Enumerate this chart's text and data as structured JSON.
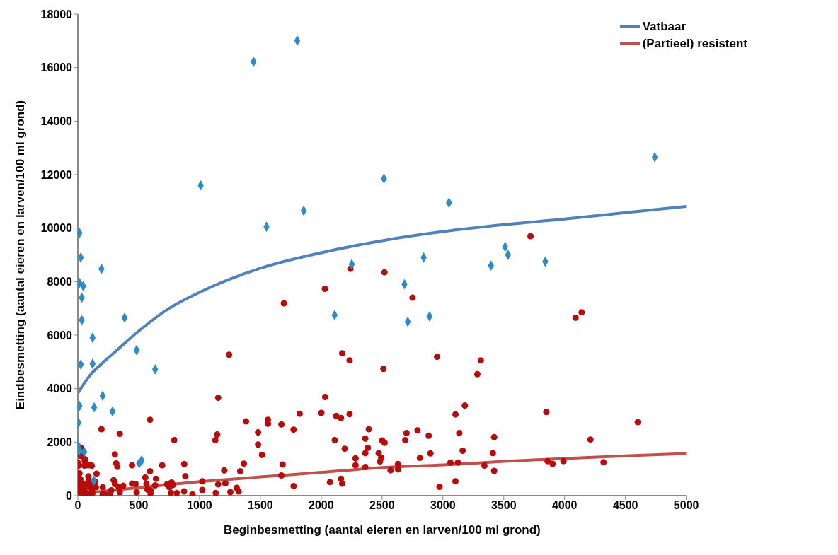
{
  "chart_data": {
    "type": "scatter",
    "xlabel": "Beginbesmetting (aantal eieren en larven/100 ml grond)",
    "ylabel": "Eindbesmetting (aantal eieren en larven/100 ml grond)",
    "xlim": [
      0,
      5000
    ],
    "xticks": [
      0,
      500,
      1000,
      1500,
      2000,
      2500,
      3000,
      3500,
      4000,
      4500,
      5000
    ],
    "ylim": [
      0,
      18000
    ],
    "yticks": [
      0,
      2000,
      4000,
      6000,
      8000,
      10000,
      12000,
      14000,
      16000,
      18000
    ],
    "grid": false,
    "legend": "top right",
    "series": [
      {
        "type": "scatter",
        "marker": "diamond",
        "color": "#2e8bc9",
        "x": [
          1444,
          1803,
          1010,
          1550,
          1856,
          2515,
          3050,
          4741,
          2251,
          2842,
          3511,
          3535,
          3395,
          3841,
          2684,
          2110,
          2711,
          2890,
          194,
          13,
          44,
          32,
          32,
          384,
          121,
          483,
          24,
          121,
          635,
          204,
          13,
          134,
          285,
          5,
          1,
          13,
          53,
          504,
          524,
          131,
          13,
          24
        ],
        "values": [
          16224,
          17011,
          11600,
          10050,
          10650,
          11850,
          10950,
          12650,
          8650,
          8900,
          9300,
          9000,
          8600,
          8750,
          7900,
          6750,
          6500,
          6700,
          8475,
          7950,
          7830,
          7400,
          6560,
          6650,
          5900,
          5440,
          4900,
          4930,
          4720,
          3730,
          3350,
          3300,
          3150,
          2730,
          1890,
          1690,
          1630,
          1210,
          1310,
          560,
          9820,
          8900
        ]
      },
      {
        "type": "scatter",
        "marker": "circle",
        "color": "#b80c0c",
        "x": [
          3720,
          2240,
          2520,
          2030,
          2750,
          4090,
          4140,
          1693,
          1243,
          1153,
          593,
          194,
          344,
          1382,
          1562,
          1562,
          1673,
          1823,
          1773,
          1481,
          1481,
          1513,
          1130,
          1145,
          792,
          24,
          57,
          24,
          304,
          315,
          325,
          445,
          693,
          874,
          1364,
          1683,
          1673,
          1773,
          1334,
          1203,
          883,
          593,
          554,
          642,
          1023,
          1153,
          1212,
          1305,
          1321,
          1253,
          1133,
          1023,
          942,
          873,
          813,
          765,
          770,
          782,
          753,
          732,
          635,
          597,
          597,
          564,
          572,
          483,
          445,
          474,
          373,
          335,
          344,
          304,
          294,
          275,
          263,
          223,
          204,
          204,
          154,
          142,
          131,
          148,
          115,
          94,
          73,
          53,
          57,
          5,
          5,
          86,
          86,
          69,
          102,
          115,
          121,
          98,
          69,
          45,
          29,
          13,
          21,
          1,
          29,
          21,
          5,
          13,
          45,
          2172,
          2233,
          2511,
          2952,
          3311,
          3283,
          2032,
          2001,
          2123,
          2162,
          2233,
          2391,
          2362,
          2383,
          2362,
          2362,
          2111,
          2193,
          2282,
          2282,
          2072,
          2162,
          2172,
          2472,
          2483,
          2493,
          2501,
          2521,
          2570,
          2631,
          2631,
          2690,
          2701,
          2791,
          2811,
          2883,
          2897,
          2972,
          3062,
          3103,
          3103,
          3123,
          3134,
          3162,
          3180,
          3341,
          3410,
          3421,
          3421,
          3850,
          3860,
          3901,
          3991,
          4212,
          4320,
          4601
        ],
        "values": [
          9700,
          8480,
          8350,
          7730,
          7400,
          6650,
          6850,
          7190,
          5266,
          3656,
          2834,
          2484,
          2309,
          2773,
          2834,
          2685,
          2660,
          3062,
          2467,
          2362,
          1907,
          1522,
          2073,
          2283,
          2073,
          1793,
          1364,
          1487,
          1539,
          1207,
          1076,
          1137,
          1137,
          1181,
          1198,
          1163,
          752,
          359,
          910,
          945,
          726,
          910,
          674,
          630,
          534,
          420,
          455,
          289,
          157,
          131,
          96,
          210,
          44,
          157,
          96,
          96,
          490,
          402,
          315,
          420,
          385,
          201,
          87,
          437,
          227,
          122,
          446,
          437,
          367,
          332,
          131,
          437,
          577,
          201,
          44,
          44,
          44,
          315,
          822,
          525,
          437,
          315,
          1120,
          1137,
          1137,
          1120,
          1295,
          1207,
          1120,
          717,
          525,
          332,
          315,
          175,
          96,
          44,
          96,
          157,
          44,
          157,
          332,
          463,
          463,
          612,
          726,
          831,
          420,
          5322,
          5057,
          4737,
          5190,
          5057,
          4539,
          3687,
          3091,
          2981,
          2902,
          3046,
          2482,
          2130,
          1787,
          1588,
          1068,
          2073,
          1753,
          1391,
          1136,
          506,
          627,
          451,
          1588,
          1278,
          1422,
          2062,
          1976,
          947,
          1181,
          981,
          2073,
          2340,
          2440,
          1412,
          2241,
          1577,
          328,
          1233,
          3036,
          538,
          1233,
          2340,
          1677,
          3367,
          1123,
          1588,
          2186,
          926,
          3125,
          1291,
          1191,
          1291,
          2097,
          1246,
          2747
        ]
      },
      {
        "type": "line",
        "name": "Vatbaar",
        "color": "#4f81bd",
        "x": [
          0,
          100,
          200,
          300,
          500,
          750,
          1000,
          1500,
          2000,
          2500,
          3000,
          3500,
          4000,
          4500,
          5000
        ],
        "values": [
          3830,
          4500,
          4950,
          5350,
          6150,
          7000,
          7600,
          8500,
          9080,
          9530,
          9870,
          10130,
          10340,
          10580,
          10810
        ]
      },
      {
        "type": "line",
        "name": "(Partieel) resistent",
        "color": "#c0504d",
        "x": [
          0,
          500,
          1000,
          1500,
          2000,
          2500,
          3000,
          3500,
          4000,
          4500,
          5000
        ],
        "values": [
          70,
          300,
          520,
          700,
          870,
          1050,
          1150,
          1280,
          1390,
          1490,
          1575
        ]
      }
    ]
  }
}
